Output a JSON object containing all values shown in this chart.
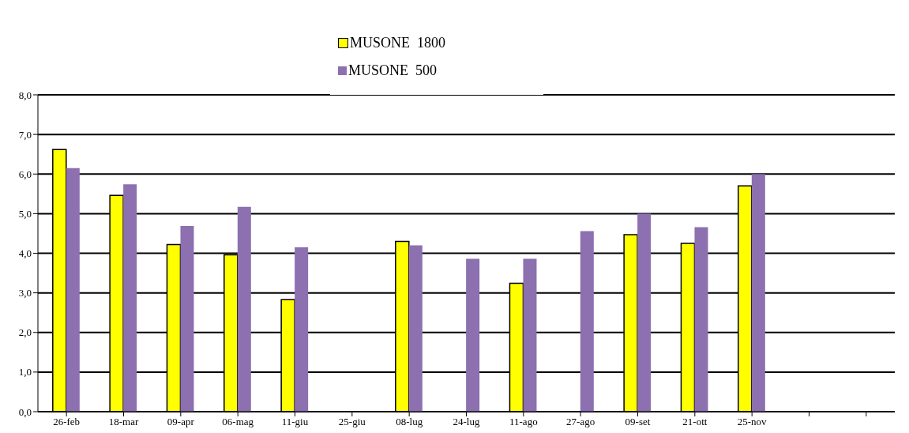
{
  "chart_data": {
    "type": "bar",
    "categories": [
      "26-feb",
      "18-mar",
      "09-apr",
      "06-mag",
      "11-giu",
      "25-giu",
      "08-lug",
      "24-lug",
      "11-ago",
      "27-ago",
      "09-set",
      "21-ott",
      "25-nov",
      null,
      null
    ],
    "series": [
      {
        "name": "MUSONE  1800",
        "color": "#ffff00",
        "values": [
          6.62,
          5.46,
          4.22,
          3.96,
          2.83,
          null,
          4.3,
          null,
          3.24,
          null,
          4.47,
          4.25,
          5.7,
          null,
          null
        ]
      },
      {
        "name": "MUSONE  500",
        "color": "#8c70b0",
        "values": [
          6.15,
          5.74,
          4.69,
          5.17,
          4.15,
          null,
          4.2,
          3.86,
          3.86,
          4.56,
          5.0,
          4.66,
          6.0,
          null,
          null
        ]
      }
    ],
    "ylim": [
      0,
      8
    ],
    "yticks": [
      {
        "value": 0,
        "label": "0,0"
      },
      {
        "value": 1,
        "label": "1,0"
      },
      {
        "value": 2,
        "label": "2,0"
      },
      {
        "value": 3,
        "label": "3,0"
      },
      {
        "value": 4,
        "label": "4,0"
      },
      {
        "value": 5,
        "label": "5,0"
      },
      {
        "value": 6,
        "label": "6,0"
      },
      {
        "value": 7,
        "label": "7,0"
      },
      {
        "value": 8,
        "label": "8,0"
      }
    ],
    "grid": "y",
    "legend": "top"
  }
}
